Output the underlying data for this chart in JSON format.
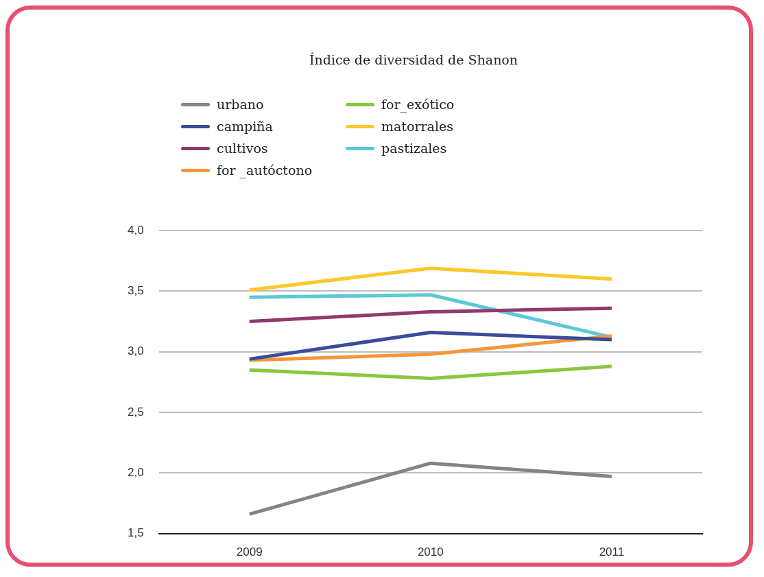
{
  "chart_data": {
    "type": "line",
    "title": "Índice de diversidad de Shanon",
    "categories": [
      "2009",
      "2010",
      "2011"
    ],
    "series": [
      {
        "name": "urbano",
        "color": "#848388",
        "values": [
          1.66,
          2.08,
          1.97
        ]
      },
      {
        "name": "campiña",
        "color": "#3a4b9b",
        "values": [
          2.94,
          3.16,
          3.1
        ]
      },
      {
        "name": "cultivos",
        "color": "#903a6c",
        "values": [
          3.25,
          3.33,
          3.36
        ]
      },
      {
        "name": "for _autóctono",
        "color": "#f59639",
        "values": [
          2.93,
          2.98,
          3.13
        ]
      },
      {
        "name": "for_exótico",
        "color": "#8cc63f",
        "values": [
          2.85,
          2.78,
          2.88
        ]
      },
      {
        "name": "matorrales",
        "color": "#fcc82a",
        "values": [
          3.51,
          3.69,
          3.6
        ]
      },
      {
        "name": "pastizales",
        "color": "#5bc8d6",
        "values": [
          3.45,
          3.47,
          3.12
        ]
      }
    ],
    "ylim": [
      1.5,
      4.0
    ],
    "yticks": [
      {
        "value": 1.5,
        "label": "1,5"
      },
      {
        "value": 2,
        "label": "2,0"
      },
      {
        "value": 2.5,
        "label": "2,5"
      },
      {
        "value": 3,
        "label": "3,0"
      },
      {
        "value": 3.5,
        "label": "3,5"
      },
      {
        "value": 4,
        "label": "4,0"
      }
    ],
    "grid": "y",
    "legend": "top left",
    "marker": "none",
    "line_style": "solid"
  }
}
